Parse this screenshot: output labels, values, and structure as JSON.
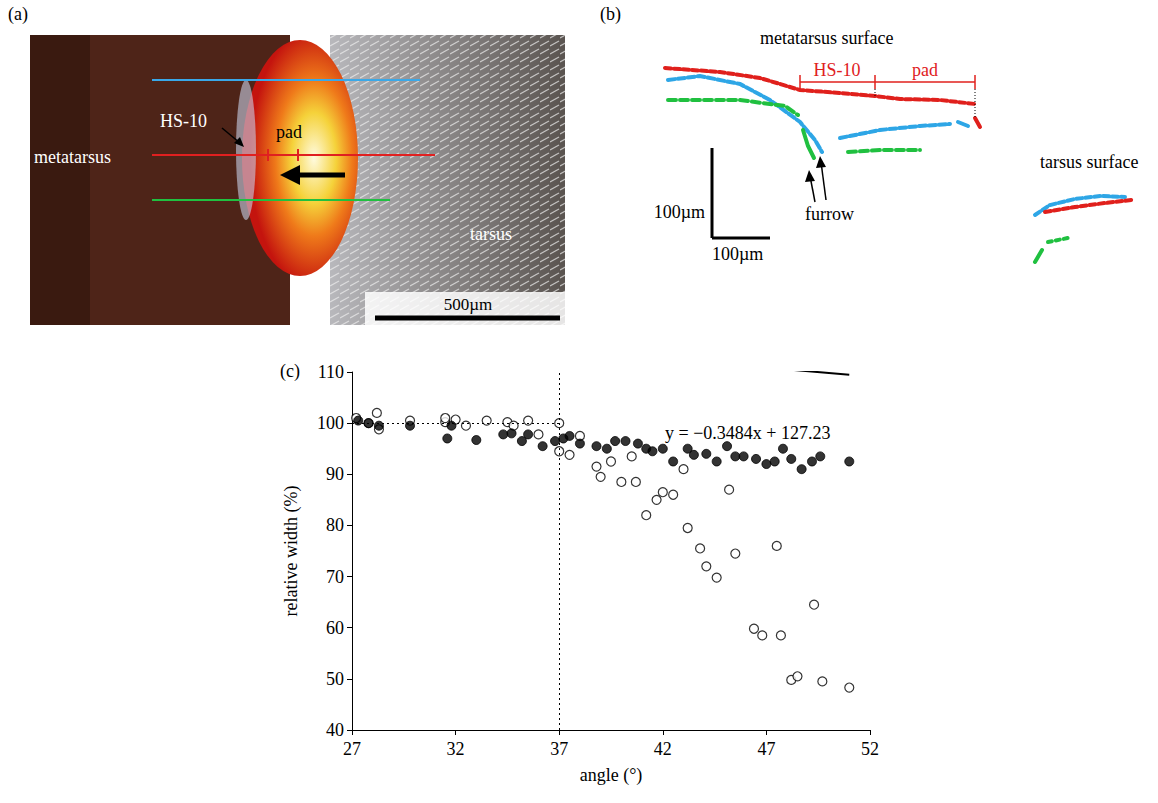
{
  "chart_data": {
    "type": "scatter",
    "panel_label": "(c)",
    "x_label": "angle (°)",
    "y_label": "relative width (%)",
    "xlim": [
      27,
      52
    ],
    "xticks": [
      27,
      32,
      37,
      42,
      47,
      52
    ],
    "ylim": [
      40,
      110
    ],
    "yticks": [
      40,
      50,
      60,
      70,
      80,
      90,
      100,
      110
    ],
    "grid": false,
    "series": [
      {
        "marker": "filled circle",
        "color": "#000000",
        "x": [
          27.3,
          27.8,
          28.3,
          29.8,
          31.6,
          31.8,
          33.0,
          34.3,
          34.7,
          35.2,
          35.5,
          36.2,
          36.8,
          37.2,
          37.5,
          38.0,
          38.8,
          39.3,
          39.7,
          40.2,
          40.8,
          41.2,
          41.5,
          42.0,
          42.5,
          43.2,
          43.5,
          44.1,
          44.6,
          45.1,
          45.5,
          45.9,
          46.5,
          47.0,
          47.4,
          47.8,
          48.2,
          48.7,
          49.2,
          49.6,
          51.0
        ],
        "values": [
          100.5,
          100,
          99.5,
          99.5,
          97,
          99.5,
          96.7,
          97.8,
          98,
          96.5,
          97.8,
          95.5,
          96.5,
          97,
          97.5,
          96,
          95.5,
          95,
          96.5,
          96.5,
          96,
          95,
          94.5,
          95,
          92.5,
          95,
          93.8,
          94,
          92.5,
          95.5,
          93.5,
          93.5,
          93,
          92,
          92.5,
          95,
          93,
          91,
          92.5,
          93.5,
          92.5
        ]
      },
      {
        "marker": "open circle",
        "color": "#000000",
        "x": [
          27.2,
          27.8,
          28.2,
          28.3,
          29.8,
          31.5,
          31.5,
          32.0,
          32.5,
          33.5,
          34.5,
          34.8,
          35.5,
          36.0,
          37.0,
          37.0,
          37.5,
          38.0,
          38.8,
          39.0,
          39.5,
          40.0,
          40.5,
          40.7,
          41.2,
          41.7,
          42.0,
          42.5,
          43.0,
          43.2,
          43.8,
          44.1,
          44.6,
          45.2,
          45.5,
          46.4,
          46.8,
          47.5,
          47.7,
          48.2,
          48.5,
          49.3,
          49.7,
          51.0
        ],
        "values": [
          101,
          100,
          102,
          98.8,
          100.5,
          100.2,
          101,
          100.7,
          99.5,
          100.5,
          100.2,
          99.5,
          100.5,
          97.8,
          100,
          94.5,
          93.8,
          97.5,
          91.5,
          89.5,
          92.5,
          88.5,
          93.5,
          88.5,
          82,
          85,
          86.5,
          86,
          91,
          79.5,
          75.5,
          72,
          69.8,
          87,
          74.5,
          59.8,
          58.5,
          76,
          58.5,
          49.8,
          50.5,
          64.5,
          49.5,
          48.3
        ]
      }
    ],
    "fit": {
      "slope": -0.3484,
      "intercept": 127.23,
      "x_range": [
        27.3,
        51.0
      ],
      "label": "y = −0.3484x + 127.23",
      "line_style": "solid",
      "color": "#000000"
    },
    "reference_lines": {
      "x": 37,
      "y": 100,
      "line_style": "dotted"
    }
  },
  "figure": {
    "panel_a": {
      "label": "(a)",
      "metatarsus": "metatarsus",
      "tarsus": "tarsus",
      "hs": "HS-10",
      "pad": "pad",
      "scale_bar": "500µm"
    },
    "panel_b": {
      "label": "(b)",
      "metatarsus_surface": "metatarsus surface",
      "tarsus_surface": "tarsus surface",
      "hs": "HS-10",
      "pad": "pad",
      "furrow": "furrow",
      "scale_bar_vertical": "100µm",
      "scale_bar_horizontal": "100µm"
    }
  }
}
